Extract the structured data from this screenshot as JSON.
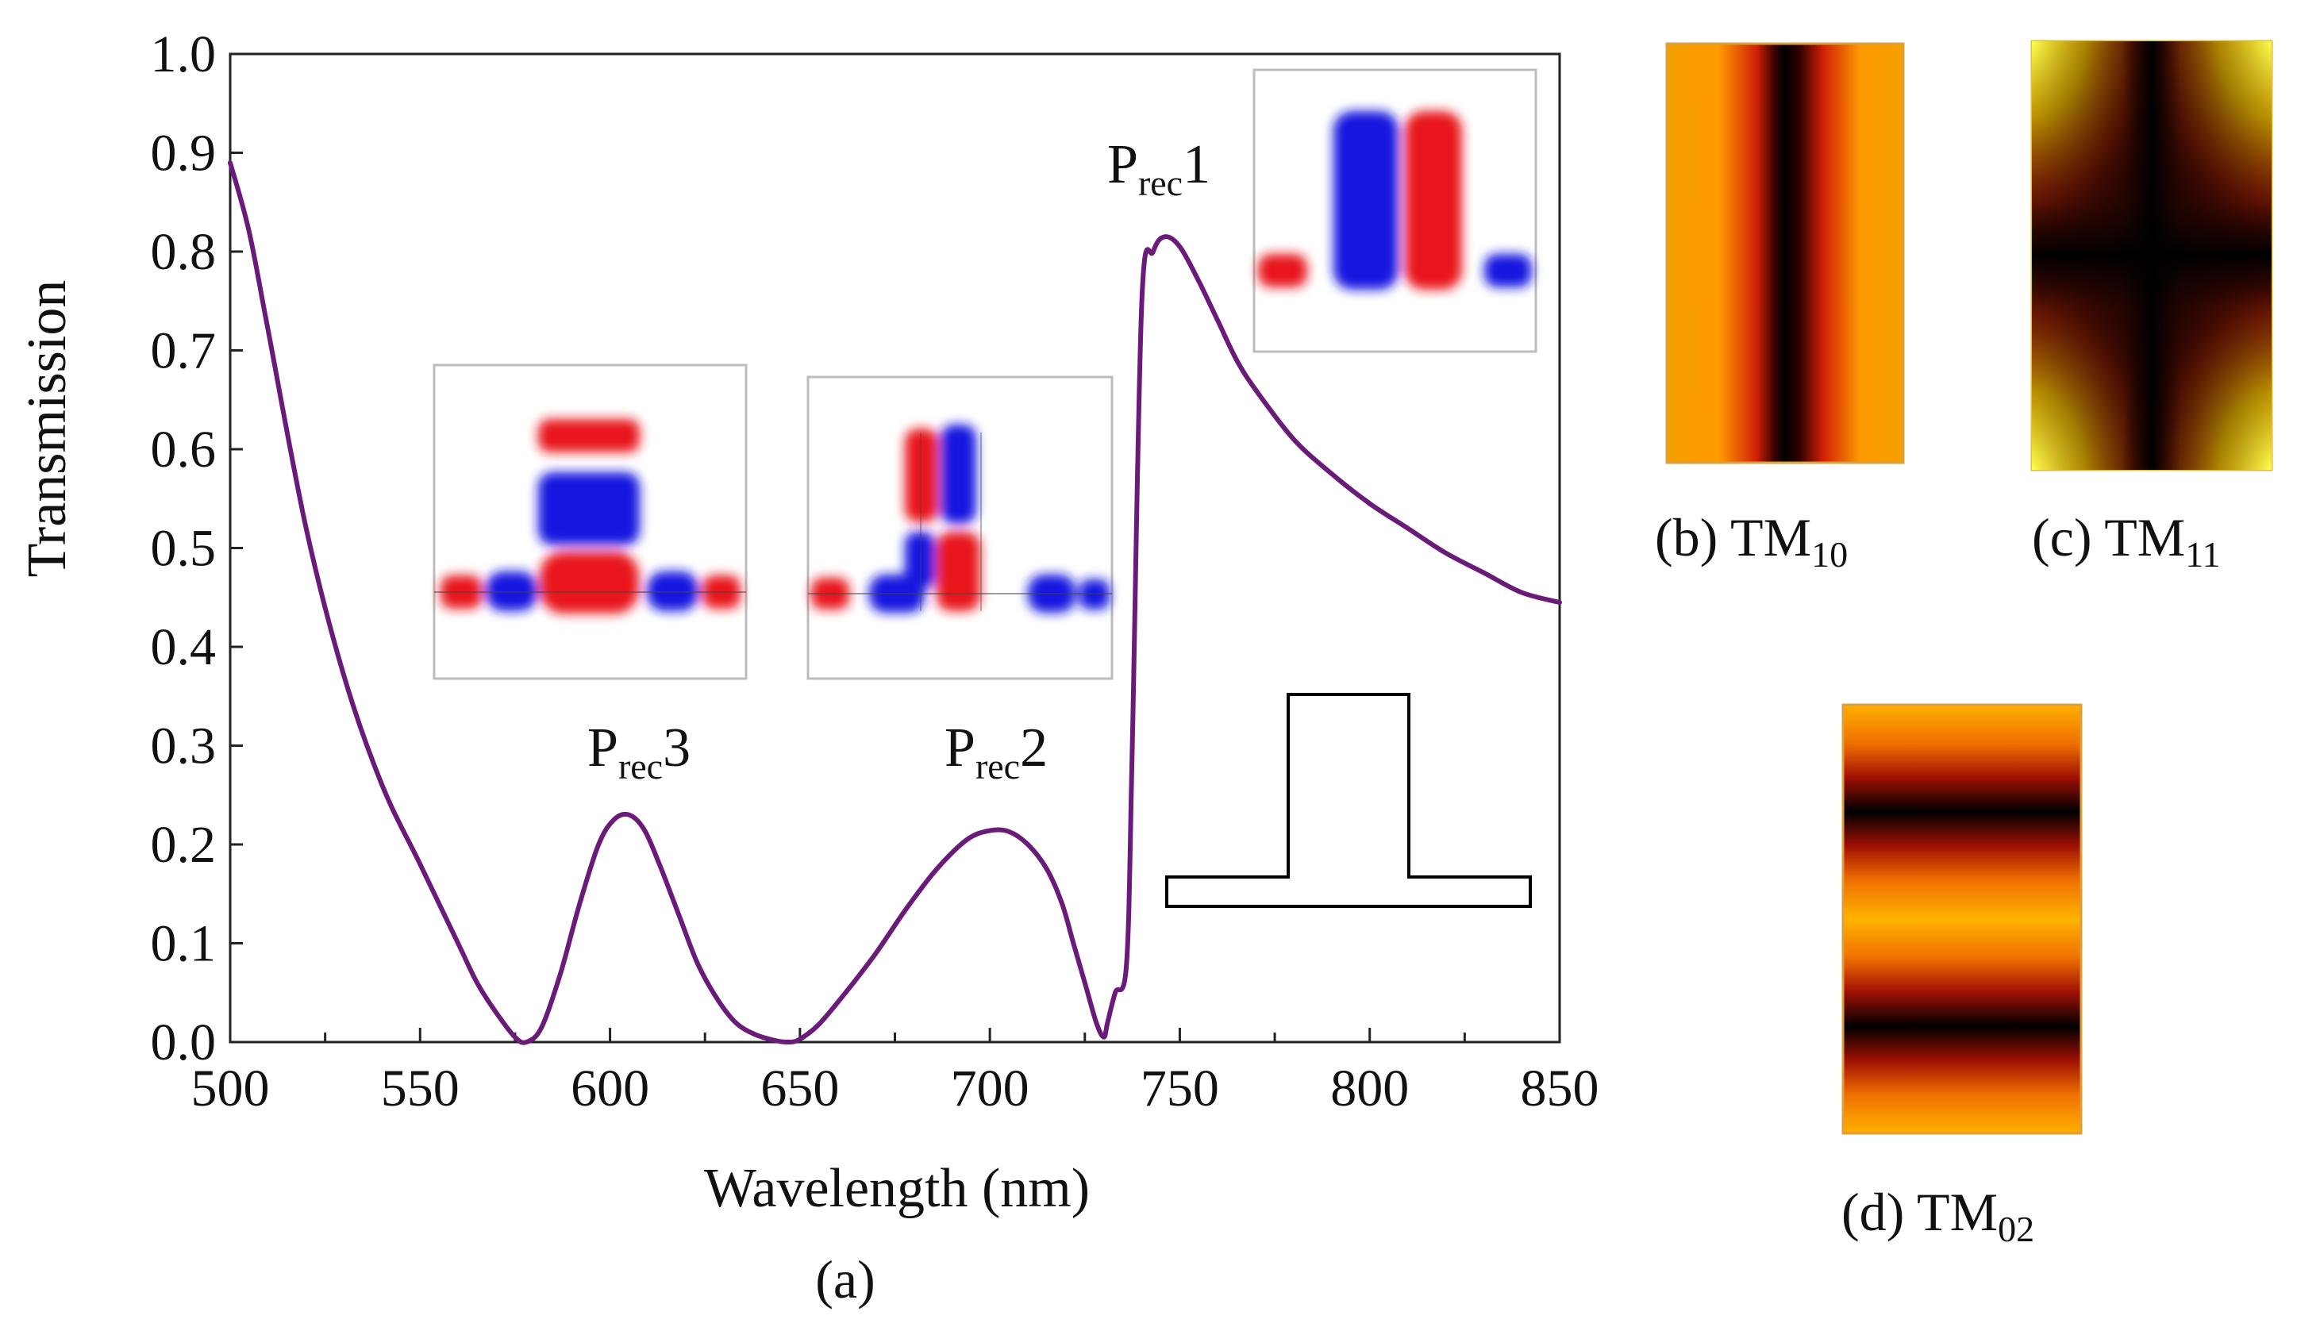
{
  "chart_data": {
    "type": "line",
    "panel_caption": "(a)",
    "xlabel": "Wavelength (nm)",
    "ylabel": "Transmission",
    "xlim": [
      500,
      850
    ],
    "ylim": [
      0.0,
      1.0
    ],
    "xticks": [
      500,
      550,
      600,
      650,
      700,
      750,
      800,
      850
    ],
    "xtick_labels": [
      "500",
      "550",
      "600",
      "650",
      "700",
      "750",
      "800",
      "850"
    ],
    "yticks": [
      0.0,
      0.1,
      0.2,
      0.3,
      0.4,
      0.5,
      0.6,
      0.7,
      0.8,
      0.9,
      1.0
    ],
    "ytick_labels": [
      "0.0",
      "0.1",
      "0.2",
      "0.3",
      "0.4",
      "0.5",
      "0.6",
      "0.7",
      "0.8",
      "0.9",
      "1.0"
    ],
    "line_color": "#6a1b7a",
    "series": [
      {
        "name": "Transmission",
        "x": [
          500,
          505,
          510,
          520,
          530,
          540,
          550,
          560,
          565,
          570,
          575,
          578,
          582,
          587,
          592,
          597,
          601,
          605,
          609,
          613,
          618,
          623,
          628,
          633,
          638,
          643,
          647,
          650,
          655,
          662,
          670,
          678,
          686,
          694,
          700,
          705,
          710,
          715,
          719,
          722,
          725,
          728,
          730,
          731,
          733,
          736,
          737.5,
          740,
          743,
          746,
          750,
          755,
          760,
          765,
          770,
          780,
          790,
          800,
          810,
          820,
          830,
          840,
          850
        ],
        "y": [
          0.89,
          0.82,
          0.72,
          0.52,
          0.37,
          0.26,
          0.18,
          0.1,
          0.06,
          0.03,
          0.005,
          0.0,
          0.015,
          0.07,
          0.14,
          0.2,
          0.225,
          0.23,
          0.215,
          0.18,
          0.13,
          0.08,
          0.045,
          0.02,
          0.008,
          0.002,
          0.0,
          0.003,
          0.018,
          0.05,
          0.09,
          0.135,
          0.175,
          0.205,
          0.214,
          0.213,
          0.2,
          0.175,
          0.14,
          0.1,
          0.06,
          0.02,
          0.005,
          0.02,
          0.05,
          0.08,
          0.3,
          0.75,
          0.8,
          0.815,
          0.805,
          0.77,
          0.73,
          0.69,
          0.66,
          0.61,
          0.575,
          0.545,
          0.52,
          0.495,
          0.475,
          0.455,
          0.445
        ]
      }
    ],
    "annotations": [
      {
        "label": "P",
        "sub": "rec",
        "suffix": "3",
        "at_x": 610,
        "at_y": 0.29
      },
      {
        "label": "P",
        "sub": "rec",
        "suffix": "2",
        "at_x": 707,
        "at_y": 0.29
      },
      {
        "label": "P",
        "sub": "rec",
        "suffix": "1",
        "at_x": 734,
        "at_y": 0.875
      }
    ]
  },
  "modes": {
    "b": {
      "caption": "(b) TM",
      "sub": "10"
    },
    "c": {
      "caption": "(c) TM",
      "sub": "11"
    },
    "d": {
      "caption": "(d) TM",
      "sub": "02"
    }
  },
  "colors": {
    "field_pos": "#e8141c",
    "field_neg": "#1616e0",
    "heat_low": "#000000",
    "heat_mid": "#d01008",
    "heat_high": "#ffa000",
    "heat_peak": "#ffff40"
  }
}
